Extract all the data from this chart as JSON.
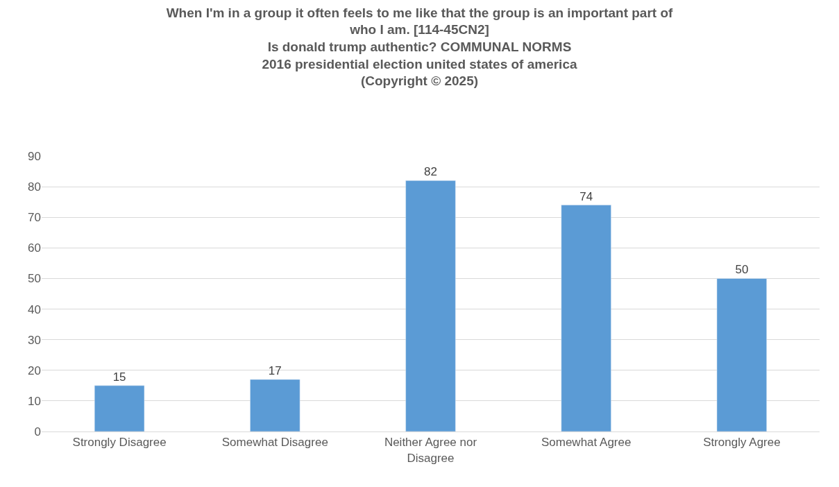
{
  "chart_data": {
    "type": "bar",
    "title": "When I'm in a group it often feels to me like that the group is an important part of\nwho I am. [114-45CN2]\nIs donald trump authentic? COMMUNAL NORMS\n2016 presidential election united states of america\n(Copyright © 2025)",
    "categories": [
      "Strongly Disagree",
      "Somewhat Disagree",
      "Neither Agree nor Disagree",
      "Somewhat Agree",
      "Strongly Agree"
    ],
    "values": [
      15,
      17,
      82,
      74,
      50
    ],
    "color": "#5b9bd5",
    "ylim": [
      0,
      90
    ],
    "yticks": [
      0,
      10,
      20,
      30,
      40,
      50,
      60,
      70,
      80,
      90
    ],
    "grid": "y",
    "data_labels": true,
    "legend": false
  }
}
